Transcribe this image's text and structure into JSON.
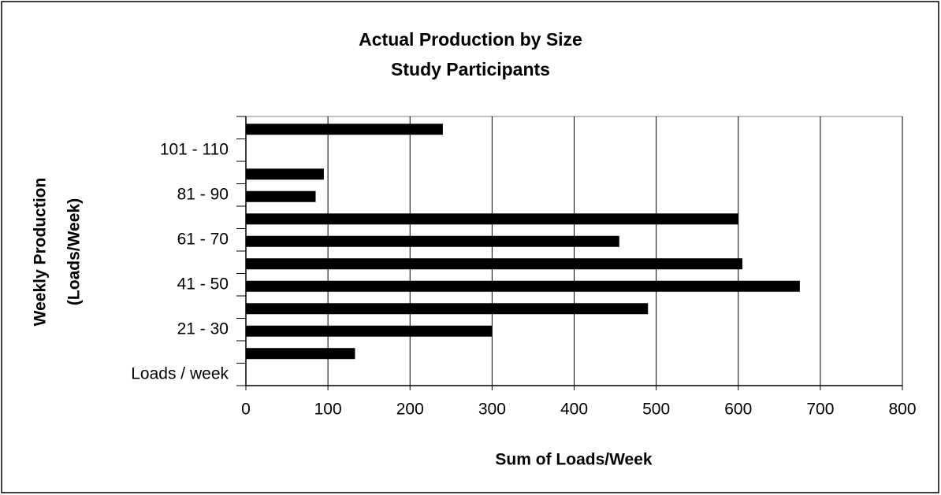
{
  "chart_data": {
    "type": "barh",
    "title": [
      "Actual Production by Size",
      "Study Participants"
    ],
    "x_label": "Sum of Loads/Week",
    "y_label": [
      "Weekly Production",
      "(Loads/Week)"
    ],
    "categories": [
      "Loads / week",
      null,
      "21 - 30",
      null,
      "41 - 50",
      null,
      "61 - 70",
      null,
      "81 - 90",
      null,
      "101 - 110",
      null
    ],
    "values": [
      null,
      133,
      300,
      490,
      675,
      605,
      455,
      600,
      85,
      95,
      null,
      240
    ],
    "color": "#000000",
    "xlim": [
      0,
      800
    ],
    "xticks": [
      0,
      100,
      200,
      300,
      400,
      500,
      600,
      700,
      800
    ],
    "grid": true
  }
}
